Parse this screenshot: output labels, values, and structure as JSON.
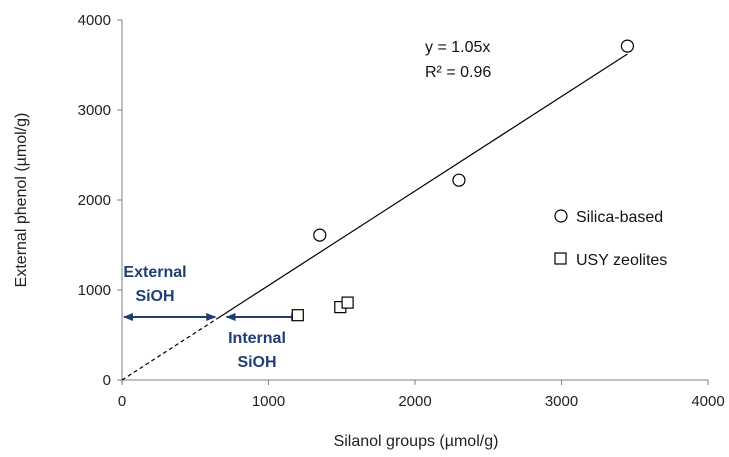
{
  "chart_data": {
    "type": "scatter",
    "xlabel": "Silanol groups (µmol/g)",
    "ylabel": "External phenol  (µmol/g)",
    "xlim": [
      0,
      4000
    ],
    "ylim": [
      0,
      4000
    ],
    "xticks": [
      0,
      1000,
      2000,
      3000,
      4000
    ],
    "yticks": [
      0,
      1000,
      2000,
      3000,
      4000
    ],
    "grid": false,
    "legend_position": "right",
    "series": [
      {
        "name": "Silica-based",
        "marker": "circle",
        "points": [
          {
            "x": 1350,
            "y": 1610
          },
          {
            "x": 2300,
            "y": 2220
          },
          {
            "x": 3450,
            "y": 3710
          }
        ]
      },
      {
        "name": "USY zeolites",
        "marker": "square",
        "points": [
          {
            "x": 1200,
            "y": 720
          },
          {
            "x": 1490,
            "y": 810
          },
          {
            "x": 1540,
            "y": 860
          }
        ]
      }
    ],
    "fit": {
      "slope": 1.05,
      "dashed_range": [
        0,
        650
      ],
      "solid_range": [
        650,
        3450
      ],
      "equation": "y = 1.05x",
      "r_squared": "R² = 0.96"
    },
    "annotations": [
      {
        "line1": "External",
        "line2": "SiOH",
        "arrow_x": [
          0,
          650
        ],
        "arrow_y": 700
      },
      {
        "line1": "Internal",
        "line2": "SiOH",
        "arrow_x": [
          700,
          1230
        ],
        "arrow_y": 700
      }
    ],
    "colors": {
      "axis": "#7f7f7f",
      "marker": "#000000",
      "fit": "#000000",
      "annotation": "#1f3f73"
    }
  }
}
